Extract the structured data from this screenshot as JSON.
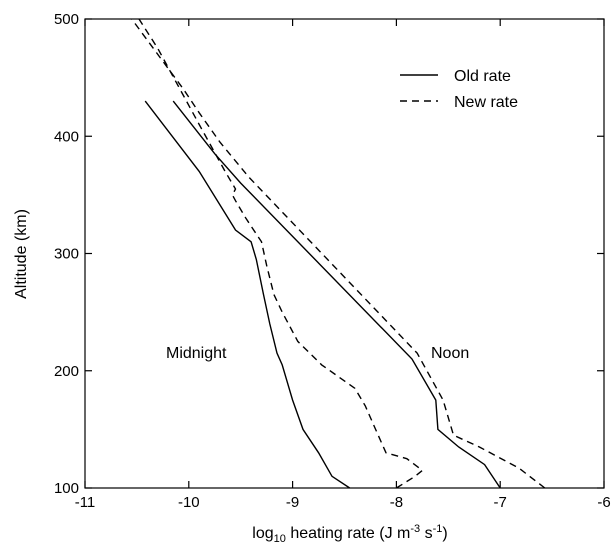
{
  "chart_data": {
    "type": "line",
    "title": "",
    "xlabel": {
      "prefix": "log",
      "subscript": "10",
      "text": " heating rate (J m",
      "sup1": "-3",
      "mid": " s",
      "sup2": "-1",
      "suffix": ")"
    },
    "ylabel": "Altitude (km)",
    "xlim": [
      -11,
      -6
    ],
    "ylim": [
      100,
      500
    ],
    "xticks": [
      -11,
      -10,
      -9,
      -8,
      -7,
      -6
    ],
    "yticks": [
      100,
      200,
      300,
      400,
      500
    ],
    "grid": false,
    "legend": {
      "placement": "top-right",
      "entries": [
        {
          "label": "Old rate",
          "style": "solid"
        },
        {
          "label": "New rate",
          "style": "dashed"
        }
      ]
    },
    "annotations": [
      {
        "text": "Midnight",
        "x": -9.6,
        "y": 215
      },
      {
        "text": "Noon",
        "x": -7.5,
        "y": 215
      }
    ],
    "series": [
      {
        "group": "Midnight",
        "style": "solid",
        "points": [
          [
            -8.45,
            100
          ],
          [
            -8.62,
            110
          ],
          [
            -8.75,
            130
          ],
          [
            -8.9,
            150
          ],
          [
            -9.0,
            175
          ],
          [
            -9.1,
            205
          ],
          [
            -9.15,
            215
          ],
          [
            -9.22,
            240
          ],
          [
            -9.28,
            265
          ],
          [
            -9.35,
            295
          ],
          [
            -9.4,
            310
          ],
          [
            -9.55,
            320
          ],
          [
            -9.9,
            370
          ],
          [
            -10.42,
            430
          ]
        ]
      },
      {
        "group": "Midnight",
        "style": "dashed",
        "points": [
          [
            -8.0,
            100
          ],
          [
            -7.82,
            110
          ],
          [
            -7.75,
            115
          ],
          [
            -7.9,
            125
          ],
          [
            -8.1,
            130
          ],
          [
            -8.2,
            150
          ],
          [
            -8.3,
            170
          ],
          [
            -8.4,
            185
          ],
          [
            -8.72,
            205
          ],
          [
            -8.95,
            225
          ],
          [
            -9.1,
            250
          ],
          [
            -9.18,
            265
          ],
          [
            -9.25,
            290
          ],
          [
            -9.3,
            310
          ],
          [
            -9.45,
            330
          ],
          [
            -9.55,
            345
          ],
          [
            -9.58,
            350
          ],
          [
            -9.55,
            355
          ],
          [
            -9.65,
            370
          ],
          [
            -9.9,
            410
          ],
          [
            -10.3,
            475
          ],
          [
            -10.48,
            500
          ]
        ]
      },
      {
        "group": "Noon",
        "style": "solid",
        "points": [
          [
            -7.0,
            100
          ],
          [
            -7.15,
            120
          ],
          [
            -7.4,
            135
          ],
          [
            -7.6,
            150
          ],
          [
            -7.62,
            175
          ],
          [
            -7.85,
            210
          ],
          [
            -9.5,
            360
          ],
          [
            -9.75,
            385
          ],
          [
            -10.15,
            430
          ]
        ]
      },
      {
        "group": "Noon",
        "style": "dashed",
        "points": [
          [
            -6.57,
            100
          ],
          [
            -6.82,
            117
          ],
          [
            -7.2,
            135
          ],
          [
            -7.45,
            145
          ],
          [
            -7.55,
            175
          ],
          [
            -7.8,
            215
          ],
          [
            -9.42,
            365
          ],
          [
            -9.7,
            395
          ],
          [
            -9.9,
            420
          ],
          [
            -10.05,
            440
          ],
          [
            -10.55,
            500
          ]
        ]
      }
    ]
  }
}
